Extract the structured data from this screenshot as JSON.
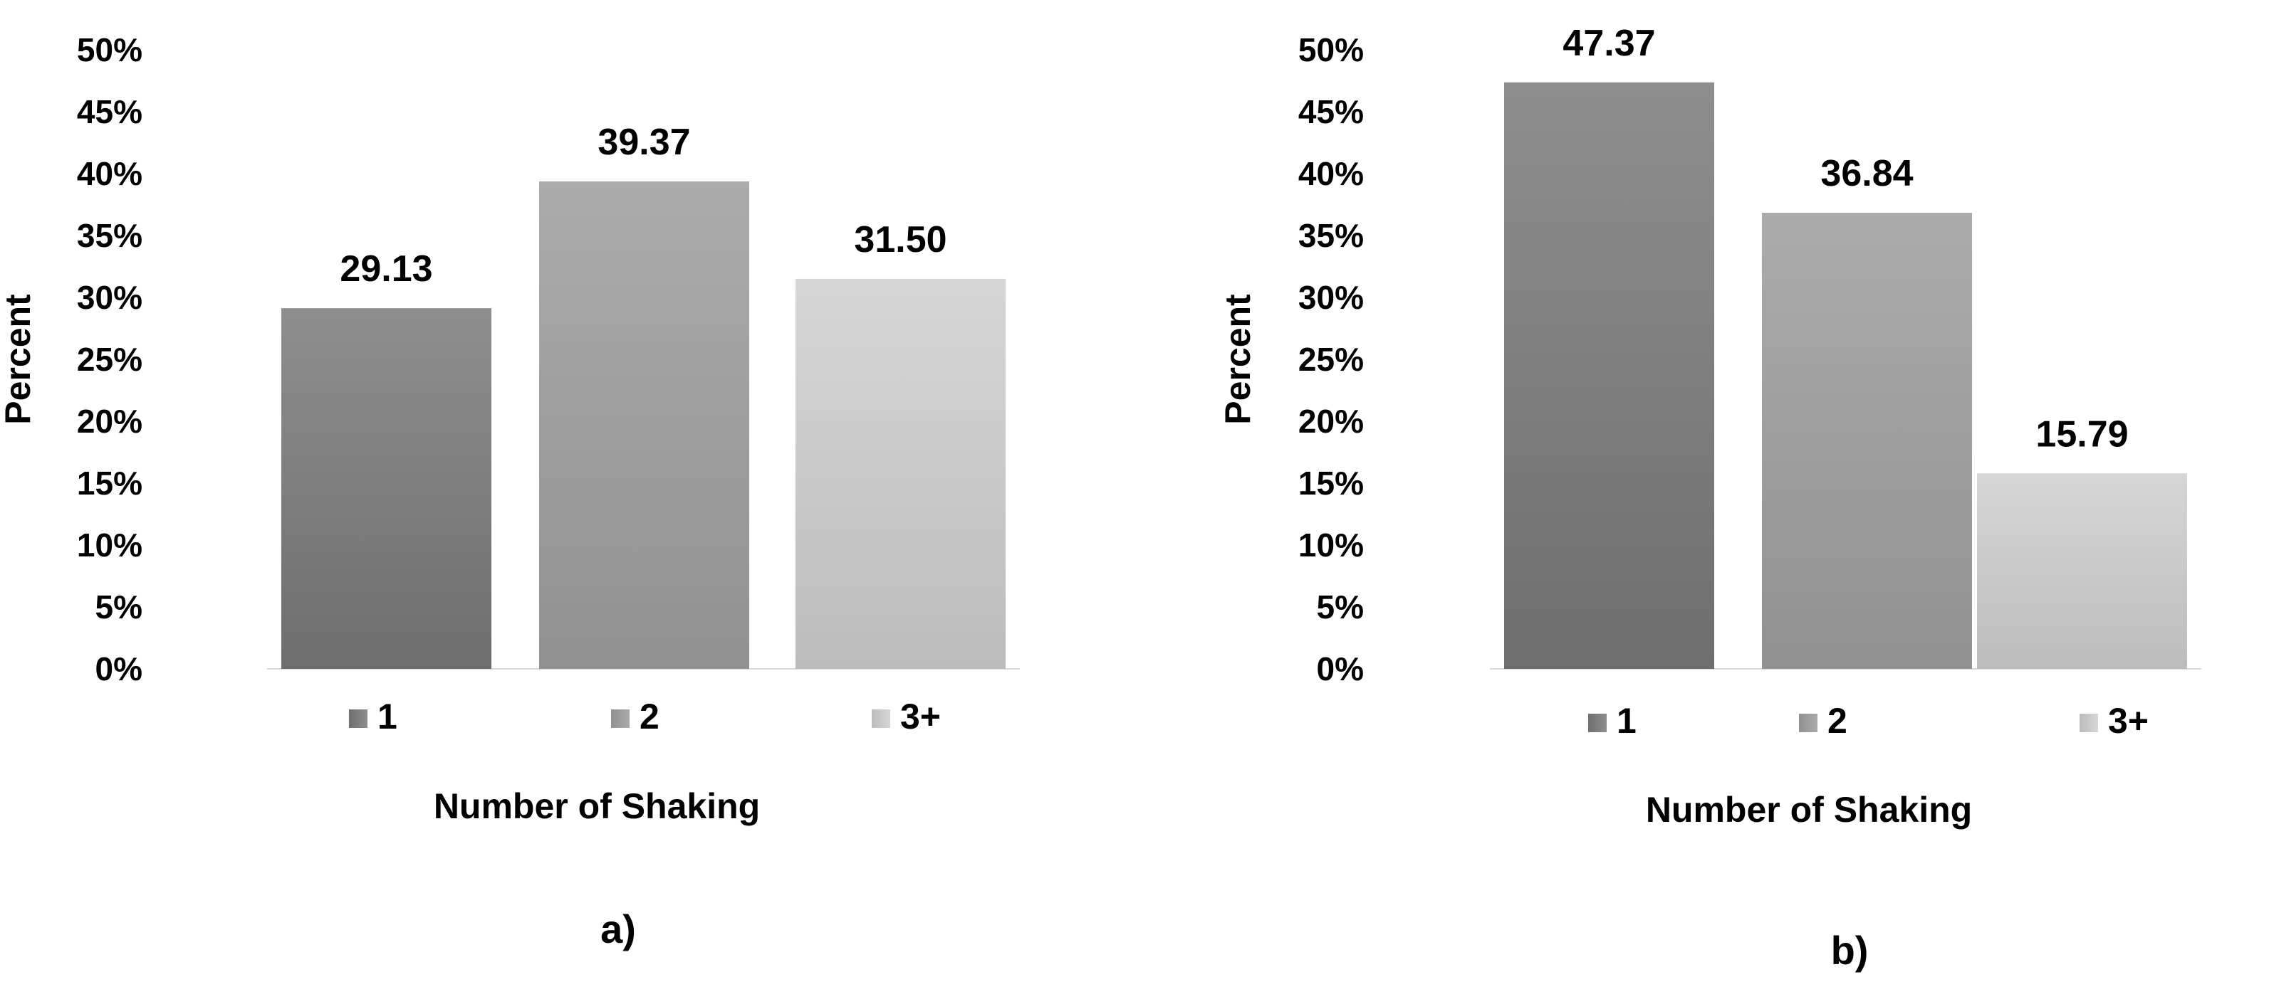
{
  "chart_data": [
    {
      "type": "bar",
      "panel_label": "a)",
      "categories": [
        "1",
        "2",
        "3+"
      ],
      "values": [
        29.13,
        39.37,
        31.5
      ],
      "value_labels": [
        "29.13",
        "39.37",
        "31.50"
      ],
      "xlabel": "Number of Shaking",
      "ylabel": "Percent",
      "ylim": [
        0,
        50
      ],
      "yticks": [
        "0%",
        "5%",
        "10%",
        "15%",
        "20%",
        "25%",
        "30%",
        "35%",
        "40%",
        "45%",
        "50%"
      ],
      "grid": false,
      "legend": {
        "position": "bottom",
        "entries": [
          "1",
          "2",
          "3+"
        ]
      }
    },
    {
      "type": "bar",
      "panel_label": "b)",
      "categories": [
        "1",
        "2",
        "3+"
      ],
      "values": [
        47.37,
        36.84,
        15.79
      ],
      "value_labels": [
        "47.37",
        "36.84",
        "15.79"
      ],
      "xlabel": "Number of Shaking",
      "ylabel": "Percent",
      "ylim": [
        0,
        50
      ],
      "yticks": [
        "0%",
        "5%",
        "10%",
        "15%",
        "20%",
        "25%",
        "30%",
        "35%",
        "40%",
        "45%",
        "50%"
      ],
      "grid": false,
      "legend": {
        "position": "bottom",
        "entries": [
          "1",
          "2",
          "3+"
        ]
      }
    }
  ],
  "colors": {
    "series_1": {
      "top": "#8e8e8e",
      "bottom": "#6e6e6e"
    },
    "series_2": {
      "top": "#ababab",
      "bottom": "#919191"
    },
    "series_3": {
      "top": "#d6d6d6",
      "bottom": "#bcbcbc"
    }
  }
}
